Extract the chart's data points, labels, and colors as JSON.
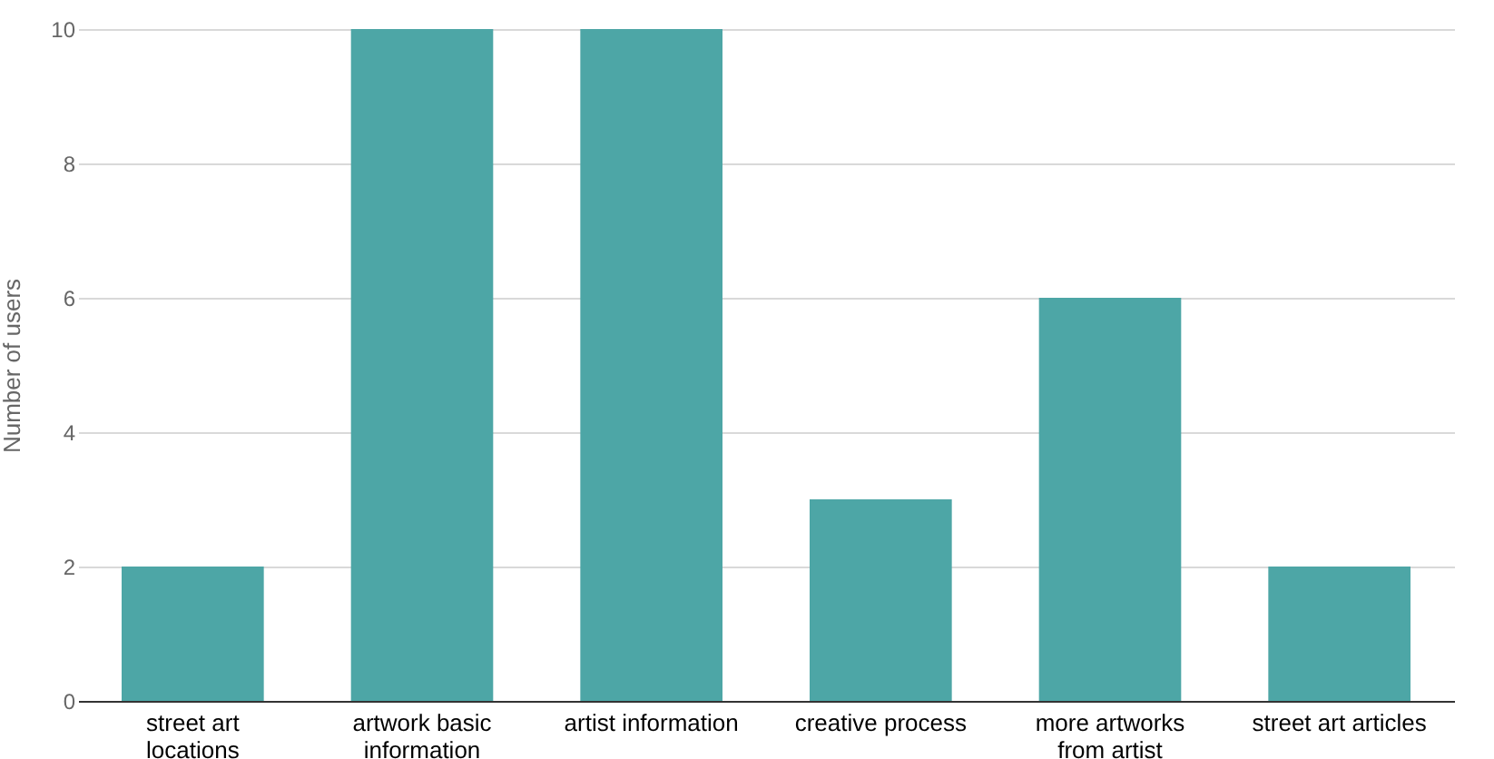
{
  "chart_data": {
    "type": "bar",
    "ylabel": "Number of users",
    "categories": [
      "street art locations",
      "artwork basic information",
      "artist information",
      "creative process",
      "more artworks from artist",
      "street art articles"
    ],
    "values": [
      2,
      10,
      10,
      3,
      6,
      2
    ],
    "color": "#4da6a6",
    "ylim": [
      0,
      10
    ],
    "yticks": [
      0,
      2,
      4,
      6,
      8,
      10
    ],
    "grid": "y"
  }
}
